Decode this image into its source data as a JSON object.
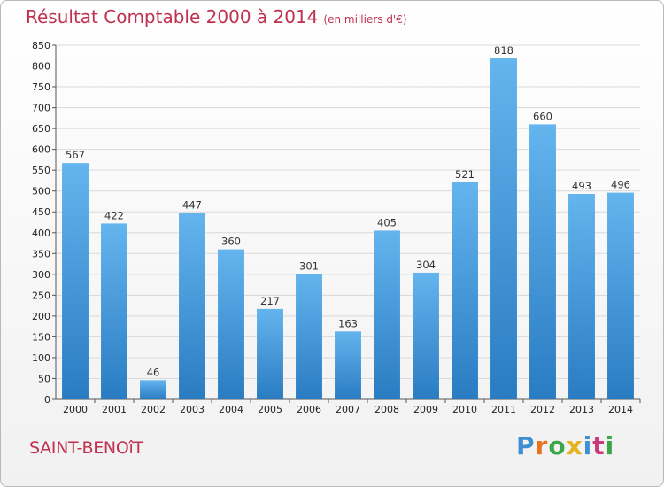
{
  "title": "Résultat Comptable 2000 à 2014",
  "subtitle": "(en milliers d'€)",
  "place": "SAINT-BENOîT",
  "brand": {
    "text": "Proxiti",
    "letters": [
      {
        "ch": "P",
        "color": "#3f8fd2"
      },
      {
        "ch": "r",
        "color": "#e8731e"
      },
      {
        "ch": "o",
        "color": "#3aa648"
      },
      {
        "ch": "x",
        "color": "#e5b21e"
      },
      {
        "ch": "i",
        "color": "#3f8fd2"
      },
      {
        "ch": "t",
        "color": "#c93a7a"
      },
      {
        "ch": "i",
        "color": "#3aa648"
      }
    ]
  },
  "colors": {
    "bar_light": "#64b4ee",
    "bar_dark": "#2a7cc2",
    "title": "#c0304f",
    "grid": "#d9d9d9"
  },
  "chart_data": {
    "type": "bar",
    "title": "Résultat Comptable 2000 à 2014",
    "subtitle": "(en milliers d'€)",
    "categories": [
      "2000",
      "2001",
      "2002",
      "2003",
      "2004",
      "2005",
      "2006",
      "2007",
      "2008",
      "2009",
      "2010",
      "2011",
      "2012",
      "2013",
      "2014"
    ],
    "values": [
      567,
      422,
      46,
      447,
      360,
      217,
      301,
      163,
      405,
      304,
      521,
      818,
      660,
      493,
      496
    ],
    "ylim": [
      0,
      850
    ],
    "yticks": [
      0,
      50,
      100,
      150,
      200,
      250,
      300,
      350,
      400,
      450,
      500,
      550,
      600,
      650,
      700,
      750,
      800,
      850
    ],
    "grid": true,
    "data_labels": true
  }
}
